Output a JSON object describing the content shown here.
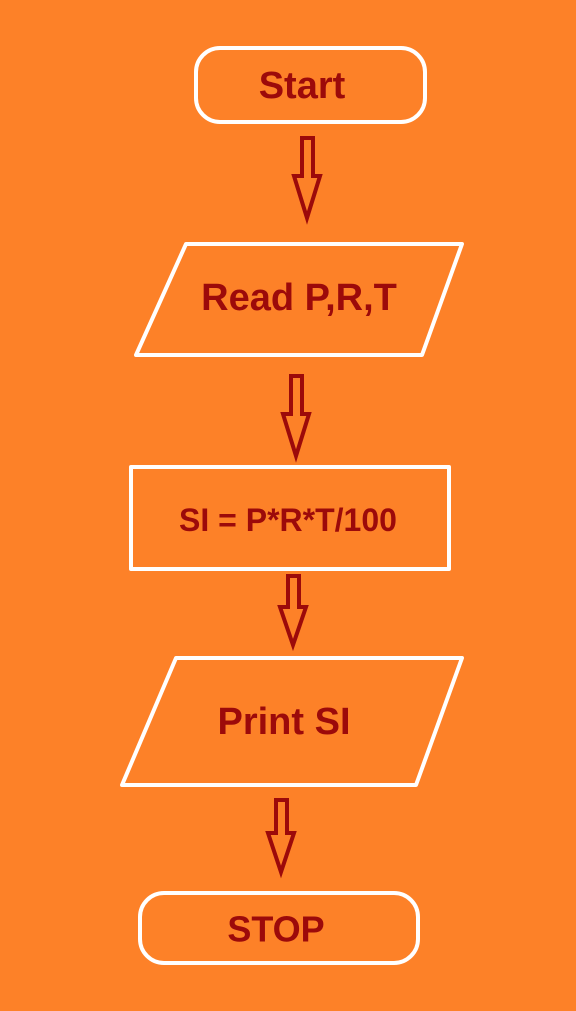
{
  "colors": {
    "background": "#fd8128",
    "shape_outline": "#ffffff",
    "text": "#9c0a0a",
    "arrow": "#9c0a0a"
  },
  "flowchart": {
    "nodes": [
      {
        "id": "start",
        "shape": "terminator",
        "label": "Start"
      },
      {
        "id": "read",
        "shape": "parallelogram",
        "label": "Read P,R,T"
      },
      {
        "id": "compute",
        "shape": "rectangle",
        "label": "SI = P*R*T/100"
      },
      {
        "id": "print",
        "shape": "parallelogram",
        "label": "Print SI"
      },
      {
        "id": "stop",
        "shape": "terminator",
        "label": "STOP"
      }
    ],
    "edges": [
      {
        "from": "start",
        "to": "read"
      },
      {
        "from": "read",
        "to": "compute"
      },
      {
        "from": "compute",
        "to": "print"
      },
      {
        "from": "print",
        "to": "stop"
      }
    ]
  }
}
